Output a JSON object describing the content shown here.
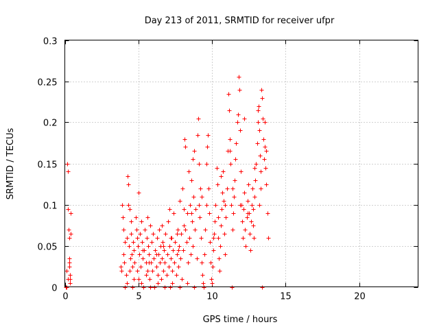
{
  "colors": {
    "points": "#ff0000",
    "grid": "#a0a0a0",
    "axes": "#000000",
    "background": "#ffffff"
  },
  "chart_data": {
    "type": "scatter",
    "title": "Day 213 of 2011, SRMTID for receiver ufpr",
    "xlabel": "GPS time / hours",
    "ylabel": "SRMTID / TECUs",
    "xlim": [
      0,
      24
    ],
    "ylim": [
      0,
      0.3
    ],
    "xticks": [
      0,
      5,
      10,
      15,
      20
    ],
    "xtick_labels": [
      "0",
      "5",
      "10",
      "15",
      "20"
    ],
    "yticks": [
      0,
      0.05,
      0.1,
      0.15,
      0.2,
      0.25,
      0.3
    ],
    "ytick_labels": [
      "0",
      "0.05",
      "0.1",
      "0.15",
      "0.2",
      "0.25",
      "0.3"
    ],
    "grid": true,
    "marker": "+",
    "series": [
      {
        "name": "SRMTID",
        "points": [
          [
            0.05,
            0.0
          ],
          [
            0.1,
            0.02
          ],
          [
            0.15,
            0.15
          ],
          [
            0.2,
            0.14
          ],
          [
            0.22,
            0.095
          ],
          [
            0.25,
            0.07
          ],
          [
            0.28,
            0.06
          ],
          [
            0.3,
            0.035
          ],
          [
            0.3,
            0.03
          ],
          [
            0.32,
            0.025
          ],
          [
            0.33,
            0.015
          ],
          [
            0.35,
            0.01
          ],
          [
            0.35,
            0.005
          ],
          [
            0.38,
            0.09
          ],
          [
            0.4,
            0.065
          ],
          [
            0.1,
            0.0
          ],
          [
            0.2,
            0.01
          ],
          [
            3.8,
            0.025
          ],
          [
            3.85,
            0.02
          ],
          [
            3.9,
            0.1
          ],
          [
            3.95,
            0.085
          ],
          [
            4.0,
            0.07
          ],
          [
            4.0,
            0.04
          ],
          [
            4.05,
            0.03
          ],
          [
            4.1,
            0.0
          ],
          [
            4.15,
            0.015
          ],
          [
            4.2,
            0.06
          ],
          [
            4.25,
            0.135
          ],
          [
            4.3,
            0.125
          ],
          [
            4.3,
            0.1
          ],
          [
            4.35,
            0.05
          ],
          [
            4.4,
            0.02
          ],
          [
            4.45,
            0.035
          ],
          [
            4.5,
            0.08
          ],
          [
            4.5,
            0.065
          ],
          [
            4.55,
            0.04
          ],
          [
            4.6,
            0.025
          ],
          [
            4.6,
            0.0
          ],
          [
            4.65,
            0.055
          ],
          [
            4.7,
            0.045
          ],
          [
            4.75,
            0.03
          ],
          [
            4.8,
            0.085
          ],
          [
            4.85,
            0.07
          ],
          [
            4.9,
            0.02
          ],
          [
            4.95,
            0.05
          ],
          [
            5.0,
            0.115
          ],
          [
            5.0,
            0.01
          ],
          [
            5.05,
            0.04
          ],
          [
            5.1,
            0.065
          ],
          [
            5.15,
            0.025
          ],
          [
            5.2,
            0.08
          ],
          [
            5.25,
            0.055
          ],
          [
            5.3,
            0.035
          ],
          [
            5.35,
            0.0
          ],
          [
            5.4,
            0.045
          ],
          [
            5.45,
            0.07
          ],
          [
            5.5,
            0.015
          ],
          [
            5.5,
            0.03
          ],
          [
            5.55,
            0.06
          ],
          [
            5.6,
            0.02
          ],
          [
            5.65,
            0.05
          ],
          [
            5.7,
            0.04
          ],
          [
            5.75,
            0.01
          ],
          [
            5.8,
            0.075
          ],
          [
            5.85,
            0.03
          ],
          [
            5.9,
            0.055
          ],
          [
            5.95,
            0.02
          ],
          [
            6.0,
            0.065
          ],
          [
            6.05,
            0.035
          ],
          [
            6.1,
            0.0
          ],
          [
            6.15,
            0.045
          ],
          [
            6.2,
            0.025
          ],
          [
            6.25,
            0.06
          ],
          [
            6.3,
            0.015
          ],
          [
            6.35,
            0.04
          ],
          [
            6.4,
            0.07
          ],
          [
            6.45,
            0.03
          ],
          [
            6.5,
            0.05
          ],
          [
            6.55,
            0.01
          ],
          [
            6.6,
            0.035
          ],
          [
            6.65,
            0.055
          ],
          [
            6.7,
            0.02
          ],
          [
            6.75,
            0.045
          ],
          [
            6.8,
            0.03
          ],
          [
            6.85,
            0.065
          ],
          [
            6.9,
            0.015
          ],
          [
            6.95,
            0.04
          ],
          [
            7.0,
            0.08
          ],
          [
            7.05,
            0.025
          ],
          [
            7.1,
            0.05
          ],
          [
            7.15,
            0.0
          ],
          [
            7.2,
            0.035
          ],
          [
            7.25,
            0.06
          ],
          [
            7.3,
            0.02
          ],
          [
            7.35,
            0.045
          ],
          [
            7.4,
            0.09
          ],
          [
            7.45,
            0.03
          ],
          [
            7.5,
            0.055
          ],
          [
            7.55,
            0.015
          ],
          [
            7.6,
            0.04
          ],
          [
            7.65,
            0.07
          ],
          [
            7.7,
            0.025
          ],
          [
            7.75,
            0.05
          ],
          [
            7.8,
            0.105
          ],
          [
            7.85,
            0.035
          ],
          [
            7.9,
            0.065
          ],
          [
            7.95,
            0.01
          ],
          [
            8.0,
            0.12
          ],
          [
            8.05,
            0.045
          ],
          [
            8.1,
            0.075
          ],
          [
            8.15,
            0.18
          ],
          [
            8.2,
            0.17
          ],
          [
            8.25,
            0.055
          ],
          [
            8.3,
            0.09
          ],
          [
            8.35,
            0.03
          ],
          [
            8.4,
            0.14
          ],
          [
            8.45,
            0.06
          ],
          [
            8.5,
            0.1
          ],
          [
            8.55,
            0.04
          ],
          [
            8.6,
            0.13
          ],
          [
            8.65,
            0.08
          ],
          [
            8.7,
            0.05
          ],
          [
            8.75,
            0.11
          ],
          [
            8.8,
            0.165
          ],
          [
            8.85,
            0.07
          ],
          [
            8.9,
            0.095
          ],
          [
            8.95,
            0.035
          ],
          [
            9.0,
            0.185
          ],
          [
            9.05,
            0.205
          ],
          [
            9.1,
            0.15
          ],
          [
            9.15,
            0.085
          ],
          [
            9.2,
            0.12
          ],
          [
            9.25,
            0.06
          ],
          [
            9.3,
            0.03
          ],
          [
            9.35,
            0.015
          ],
          [
            9.4,
            0.005
          ],
          [
            9.45,
            0.0
          ],
          [
            9.5,
            0.04
          ],
          [
            9.55,
            0.07
          ],
          [
            9.6,
            0.15
          ],
          [
            9.65,
            0.17
          ],
          [
            9.7,
            0.185
          ],
          [
            9.75,
            0.12
          ],
          [
            9.8,
            0.09
          ],
          [
            9.85,
            0.055
          ],
          [
            9.9,
            0.03
          ],
          [
            9.95,
            0.01
          ],
          [
            10.0,
            0.005
          ],
          [
            10.05,
            0.025
          ],
          [
            10.1,
            0.045
          ],
          [
            10.15,
            0.065
          ],
          [
            10.2,
            0.08
          ],
          [
            10.25,
            0.1
          ],
          [
            10.3,
            0.145
          ],
          [
            10.35,
            0.125
          ],
          [
            10.4,
            0.06
          ],
          [
            10.45,
            0.035
          ],
          [
            10.5,
            0.02
          ],
          [
            10.55,
            0.05
          ],
          [
            10.6,
            0.075
          ],
          [
            10.65,
            0.095
          ],
          [
            10.7,
            0.115
          ],
          [
            10.75,
            0.14
          ],
          [
            10.8,
            0.105
          ],
          [
            10.85,
            0.065
          ],
          [
            10.9,
            0.04
          ],
          [
            10.95,
            0.085
          ],
          [
            11.0,
            0.12
          ],
          [
            11.05,
            0.165
          ],
          [
            11.1,
            0.235
          ],
          [
            11.15,
            0.215
          ],
          [
            11.2,
            0.18
          ],
          [
            11.25,
            0.15
          ],
          [
            11.3,
            0.1
          ],
          [
            11.35,
            0.0
          ],
          [
            11.4,
            0.07
          ],
          [
            11.45,
            0.09
          ],
          [
            11.5,
            0.11
          ],
          [
            11.55,
            0.13
          ],
          [
            11.6,
            0.155
          ],
          [
            11.65,
            0.175
          ],
          [
            11.7,
            0.2
          ],
          [
            11.75,
            0.21
          ],
          [
            11.8,
            0.255
          ],
          [
            11.85,
            0.24
          ],
          [
            11.9,
            0.19
          ],
          [
            11.95,
            0.14
          ],
          [
            12.0,
            0.1
          ],
          [
            12.05,
            0.08
          ],
          [
            12.1,
            0.06
          ],
          [
            12.15,
            0.095
          ],
          [
            12.2,
            0.115
          ],
          [
            12.25,
            0.07
          ],
          [
            12.3,
            0.05
          ],
          [
            12.35,
            0.085
          ],
          [
            12.4,
            0.105
          ],
          [
            12.45,
            0.125
          ],
          [
            12.5,
            0.09
          ],
          [
            12.55,
            0.065
          ],
          [
            12.6,
            0.045
          ],
          [
            12.65,
            0.08
          ],
          [
            12.7,
            0.1
          ],
          [
            12.75,
            0.12
          ],
          [
            12.8,
            0.075
          ],
          [
            12.85,
            0.06
          ],
          [
            12.9,
            0.11
          ],
          [
            12.95,
            0.13
          ],
          [
            13.0,
            0.15
          ],
          [
            13.05,
            0.175
          ],
          [
            13.1,
            0.2
          ],
          [
            13.15,
            0.22
          ],
          [
            13.2,
            0.19
          ],
          [
            13.25,
            0.16
          ],
          [
            13.3,
            0.14
          ],
          [
            13.35,
            0.24
          ],
          [
            13.4,
            0.23
          ],
          [
            13.45,
            0.205
          ],
          [
            13.5,
            0.18
          ],
          [
            13.55,
            0.155
          ],
          [
            13.6,
            0.17
          ],
          [
            13.65,
            0.145
          ],
          [
            13.7,
            0.125
          ],
          [
            13.75,
            0.09
          ],
          [
            13.8,
            0.06
          ],
          [
            13.4,
            0.0
          ],
          [
            13.2,
            0.1
          ],
          [
            13.6,
            0.2
          ],
          [
            4.2,
            0.005
          ],
          [
            4.7,
            0.01
          ],
          [
            5.2,
            0.005
          ],
          [
            5.8,
            0.0
          ],
          [
            6.3,
            0.005
          ],
          [
            6.8,
            0.0
          ],
          [
            7.3,
            0.005
          ],
          [
            7.8,
            0.0
          ],
          [
            8.3,
            0.005
          ],
          [
            8.8,
            0.0
          ],
          [
            4.4,
            0.095
          ],
          [
            5.6,
            0.085
          ],
          [
            6.6,
            0.075
          ],
          [
            7.1,
            0.095
          ],
          [
            7.6,
            0.065
          ],
          [
            8.1,
            0.095
          ],
          [
            8.7,
            0.155
          ],
          [
            9.3,
            0.11
          ],
          [
            10.6,
            0.135
          ],
          [
            11.2,
            0.165
          ],
          [
            12.2,
            0.205
          ],
          [
            12.9,
            0.145
          ],
          [
            13.1,
            0.215
          ],
          [
            13.7,
            0.165
          ],
          [
            4.1,
            0.055
          ],
          [
            4.9,
            0.06
          ],
          [
            5.3,
            0.045
          ],
          [
            5.7,
            0.03
          ],
          [
            6.2,
            0.04
          ],
          [
            6.7,
            0.05
          ],
          [
            7.2,
            0.06
          ],
          [
            7.7,
            0.045
          ],
          [
            8.2,
            0.07
          ],
          [
            8.6,
            0.09
          ],
          [
            9.1,
            0.1
          ],
          [
            9.6,
            0.1
          ],
          [
            10.1,
            0.06
          ],
          [
            10.4,
            0.085
          ],
          [
            10.9,
            0.1
          ],
          [
            11.4,
            0.12
          ],
          [
            11.9,
            0.1
          ],
          [
            12.4,
            0.09
          ],
          [
            12.8,
            0.095
          ],
          [
            13.3,
            0.12
          ]
        ]
      }
    ]
  }
}
